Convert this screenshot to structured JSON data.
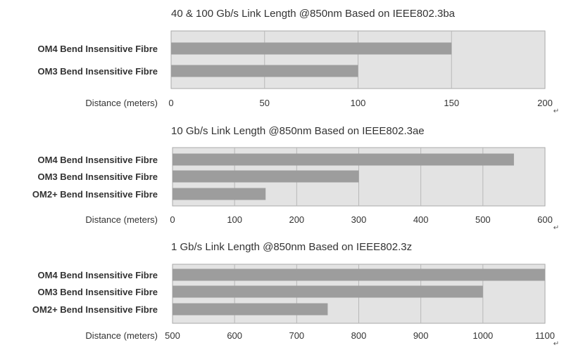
{
  "colors": {
    "plot_bg": "#e3e3e3",
    "bar": "#9d9d9d",
    "grid": "#b8b8b8",
    "frame": "#a9a9a9"
  },
  "paragraph_mark": "↵",
  "chart_data": [
    {
      "type": "bar",
      "orientation": "horizontal",
      "title": "40 & 100 Gb/s Link Length @850nm Based on IEEE802.3ba",
      "xlabel": "Distance (meters)",
      "categories": [
        "OM4 Bend Insensitive Fibre",
        "OM3 Bend Insensitive Fibre"
      ],
      "values": [
        150,
        100
      ],
      "xlim": [
        0,
        200
      ],
      "xticks": [
        "0",
        "50",
        "100",
        "150",
        "200"
      ],
      "grid": true
    },
    {
      "type": "bar",
      "orientation": "horizontal",
      "title": "10 Gb/s Link Length @850nm Based on IEEE802.3ae",
      "xlabel": "Distance (meters)",
      "categories": [
        "OM4 Bend Insensitive Fibre",
        "OM3 Bend Insensitive Fibre",
        "OM2+ Bend Insensitive Fibre"
      ],
      "values": [
        550,
        300,
        150
      ],
      "xlim": [
        0,
        600
      ],
      "xticks": [
        "0",
        "100",
        "200",
        "300",
        "400",
        "500",
        "600"
      ],
      "grid": true
    },
    {
      "type": "bar",
      "orientation": "horizontal",
      "title": "1 Gb/s Link Length @850nm Based on IEEE802.3z",
      "xlabel": "Distance (meters)",
      "categories": [
        "OM4 Bend Insensitive Fibre",
        "OM3 Bend Insensitive Fibre",
        "OM2+ Bend Insensitive Fibre"
      ],
      "values": [
        1100,
        1000,
        750
      ],
      "xlim": [
        500,
        1100
      ],
      "xticks": [
        "500",
        "600",
        "700",
        "800",
        "900",
        "1000",
        "1100"
      ],
      "grid": true
    }
  ]
}
